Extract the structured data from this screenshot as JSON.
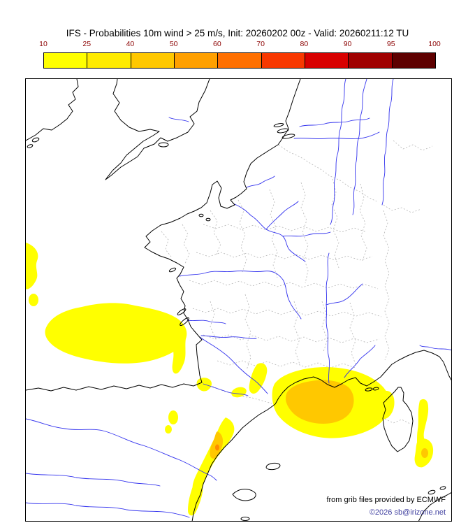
{
  "title": "IFS - Probabilities 10m wind > 25 m/s, Init: 20260202 00z - Valid: 20260211:12 TU",
  "colorbar": {
    "tick_labels": [
      "10",
      "25",
      "40",
      "50",
      "60",
      "70",
      "80",
      "90",
      "95",
      "100"
    ],
    "colors": [
      "#ffff00",
      "#ffeb00",
      "#ffc800",
      "#ffa000",
      "#ff7000",
      "#f83800",
      "#d80000",
      "#a00000",
      "#5e0000"
    ],
    "tick_color": "#8b0000"
  },
  "credits": {
    "source": "from grib files provided by ECMWF",
    "copyright": "©2026 sb@irizone.net"
  },
  "map": {
    "colors": {
      "coastline": "#000000",
      "rivers": "#3333ee",
      "department_borders": "#b4b4b4",
      "probability_10": "#ffff00",
      "probability_40": "#ffc800",
      "probability_60": "#ff8c00"
    }
  }
}
